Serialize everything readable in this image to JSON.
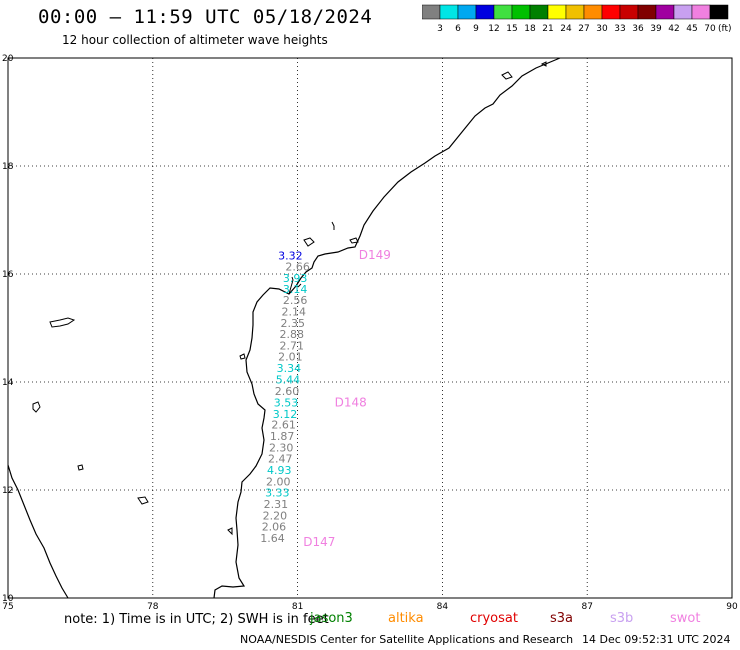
{
  "header": {
    "title": "00:00 – 11:59 UTC 05/18/2024",
    "subtitle": "12 hour collection of altimeter wave heights"
  },
  "colorbar": {
    "unit_label": "(ft)",
    "labels": [
      "3",
      "6",
      "9",
      "12",
      "15",
      "18",
      "21",
      "24",
      "27",
      "30",
      "33",
      "36",
      "39",
      "42",
      "45",
      "70"
    ],
    "colors": [
      "#808080",
      "#00e5e5",
      "#00a8f0",
      "#0000e0",
      "#40e040",
      "#00c000",
      "#008000",
      "#ffff00",
      "#f0c000",
      "#ff8c00",
      "#ff0000",
      "#c80000",
      "#800000",
      "#a000a0",
      "#c8a0f0",
      "#f080e0",
      "#000000"
    ]
  },
  "chart_data": {
    "type": "scatter",
    "title": "00:00 – 11:59 UTC 05/18/2024",
    "subtitle": "12 hour collection of altimeter wave heights",
    "xlim": [
      75,
      90
    ],
    "ylim": [
      10,
      20
    ],
    "x_ticks": [
      "75",
      "78",
      "81",
      "84",
      "87",
      "90"
    ],
    "y_ticks": [
      "10",
      "12",
      "14",
      "16",
      "18",
      "20"
    ],
    "grid": true,
    "points": [
      {
        "lon": 80.85,
        "lat": 16.34,
        "swh": "3.32",
        "color": "#0000e0"
      },
      {
        "lon": 81.0,
        "lat": 16.14,
        "swh": "2.66",
        "color": "#808080"
      },
      {
        "lon": 80.95,
        "lat": 15.93,
        "swh": "3.93",
        "color": "#00c8c8"
      },
      {
        "lon": 80.95,
        "lat": 15.72,
        "swh": "3.14",
        "color": "#00c8c8"
      },
      {
        "lon": 80.95,
        "lat": 15.52,
        "swh": "2.56",
        "color": "#808080"
      },
      {
        "lon": 80.92,
        "lat": 15.31,
        "swh": "2.14",
        "color": "#808080"
      },
      {
        "lon": 80.9,
        "lat": 15.09,
        "swh": "2.35",
        "color": "#808080"
      },
      {
        "lon": 80.88,
        "lat": 14.89,
        "swh": "2.88",
        "color": "#808080"
      },
      {
        "lon": 80.88,
        "lat": 14.68,
        "swh": "2.71",
        "color": "#808080"
      },
      {
        "lon": 80.85,
        "lat": 14.47,
        "swh": "2.01",
        "color": "#808080"
      },
      {
        "lon": 80.82,
        "lat": 14.26,
        "swh": "3.34",
        "color": "#00c8c8"
      },
      {
        "lon": 80.8,
        "lat": 14.05,
        "swh": "5.44",
        "color": "#00c8c8"
      },
      {
        "lon": 80.78,
        "lat": 13.83,
        "swh": "2.60",
        "color": "#808080"
      },
      {
        "lon": 80.76,
        "lat": 13.62,
        "swh": "3.53",
        "color": "#00c8c8"
      },
      {
        "lon": 80.74,
        "lat": 13.41,
        "swh": "3.12",
        "color": "#00c8c8"
      },
      {
        "lon": 80.71,
        "lat": 13.21,
        "swh": "2.61",
        "color": "#808080"
      },
      {
        "lon": 80.68,
        "lat": 13.0,
        "swh": "1.87",
        "color": "#808080"
      },
      {
        "lon": 80.66,
        "lat": 12.79,
        "swh": "2.30",
        "color": "#808080"
      },
      {
        "lon": 80.64,
        "lat": 12.58,
        "swh": "2.47",
        "color": "#808080"
      },
      {
        "lon": 80.62,
        "lat": 12.37,
        "swh": "4.93",
        "color": "#00c8c8"
      },
      {
        "lon": 80.6,
        "lat": 12.16,
        "swh": "2.00",
        "color": "#808080"
      },
      {
        "lon": 80.58,
        "lat": 11.95,
        "swh": "3.33",
        "color": "#00c8c8"
      },
      {
        "lon": 80.55,
        "lat": 11.74,
        "swh": "2.31",
        "color": "#808080"
      },
      {
        "lon": 80.53,
        "lat": 11.53,
        "swh": "2.20",
        "color": "#808080"
      },
      {
        "lon": 80.51,
        "lat": 11.32,
        "swh": "2.06",
        "color": "#808080"
      },
      {
        "lon": 80.48,
        "lat": 11.11,
        "swh": "1.64",
        "color": "#808080"
      }
    ],
    "pass_labels": [
      {
        "label": "D149",
        "lon": 82.6,
        "lat": 16.35
      },
      {
        "label": "D148",
        "lon": 82.1,
        "lat": 13.62
      },
      {
        "label": "D147",
        "lon": 81.45,
        "lat": 11.04
      }
    ]
  },
  "footer": {
    "note": "note:  1) Time is in UTC;  2) SWH is in feet",
    "missions": [
      {
        "name": "jason3",
        "color": "#008000"
      },
      {
        "name": "altika",
        "color": "#ff8c00"
      },
      {
        "name": "cryosat",
        "color": "#e00000"
      },
      {
        "name": "s3a",
        "color": "#800000"
      },
      {
        "name": "s3b",
        "color": "#c8a0f0"
      },
      {
        "name": "swot",
        "color": "#f080e0"
      }
    ],
    "credit": "NOAA/NESDIS Center for Satellite Applications and Research",
    "timestamp": "14 Dec 09:52:31 UTC 2024"
  },
  "pass_color": "#f080e0"
}
